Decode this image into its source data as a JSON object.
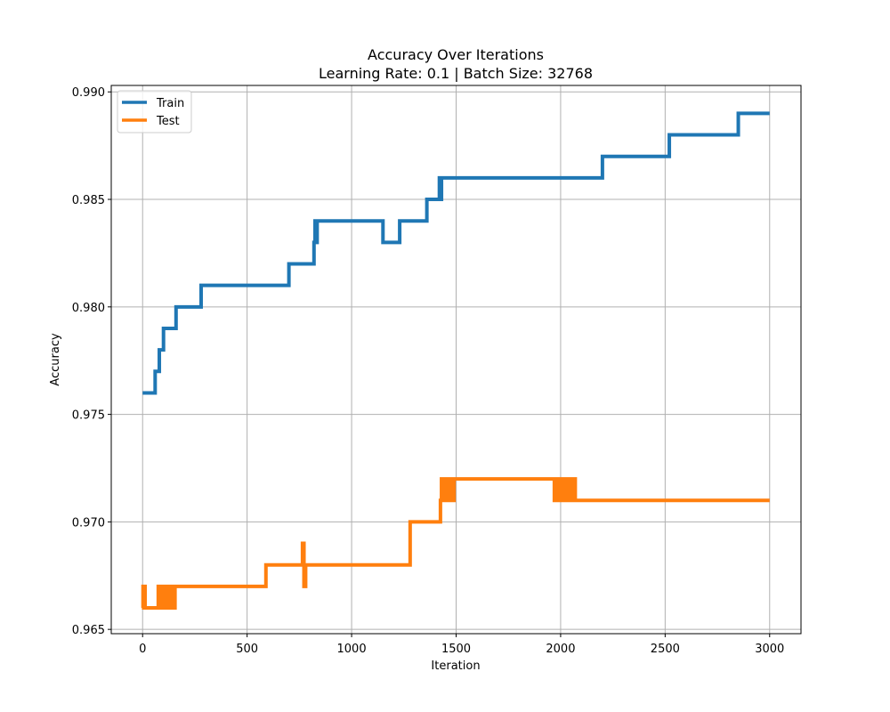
{
  "chart_data": {
    "type": "line",
    "title": "Accuracy Over Iterations",
    "subtitle": "Learning Rate: 0.1 | Batch Size: 32768",
    "xlabel": "Iteration",
    "ylabel": "Accuracy",
    "xlim": [
      -150,
      3150
    ],
    "ylim": [
      0.9648,
      0.9903
    ],
    "xticks": [
      0,
      500,
      1000,
      1500,
      2000,
      2500,
      3000
    ],
    "yticks": [
      0.965,
      0.97,
      0.975,
      0.98,
      0.985,
      0.99
    ],
    "xtick_labels": [
      "0",
      "500",
      "1000",
      "1500",
      "2000",
      "2500",
      "3000"
    ],
    "ytick_labels": [
      "0.965",
      "0.970",
      "0.975",
      "0.980",
      "0.985",
      "0.990"
    ],
    "grid": true,
    "legend": "top-left",
    "series": [
      {
        "name": "Train",
        "color": "#1f77b4",
        "x": [
          0,
          60,
          60,
          65,
          65,
          80,
          80,
          85,
          85,
          100,
          100,
          160,
          160,
          280,
          280,
          700,
          700,
          820,
          820,
          825,
          825,
          830,
          830,
          835,
          835,
          1150,
          1150,
          1230,
          1230,
          1360,
          1360,
          1420,
          1420,
          1425,
          1425,
          1430,
          1430,
          2200,
          2200,
          2520,
          2520,
          2850,
          2850,
          3000
        ],
        "y": [
          0.976,
          0.976,
          0.977,
          0.977,
          0.977,
          0.977,
          0.978,
          0.978,
          0.978,
          0.978,
          0.979,
          0.979,
          0.98,
          0.98,
          0.981,
          0.981,
          0.982,
          0.982,
          0.983,
          0.983,
          0.984,
          0.984,
          0.983,
          0.983,
          0.984,
          0.984,
          0.983,
          0.983,
          0.984,
          0.984,
          0.985,
          0.985,
          0.986,
          0.986,
          0.985,
          0.985,
          0.986,
          0.986,
          0.987,
          0.987,
          0.988,
          0.988,
          0.989,
          0.989
        ]
      },
      {
        "name": "Test",
        "color": "#ff7f0e",
        "x": [
          0,
          2,
          2,
          5,
          5,
          8,
          8,
          12,
          12,
          16,
          16,
          75,
          75,
          85,
          85,
          95,
          95,
          105,
          105,
          115,
          115,
          125,
          125,
          135,
          135,
          145,
          145,
          155,
          155,
          160,
          160,
          590,
          590,
          765,
          765,
          772,
          772,
          780,
          780,
          790,
          790,
          1280,
          1280,
          1290,
          1290,
          1425,
          1425,
          1430,
          1430,
          1435,
          1435,
          1445,
          1445,
          1455,
          1455,
          1465,
          1465,
          1475,
          1475,
          1490,
          1490,
          1500,
          1500,
          1970,
          1970,
          1980,
          1980,
          1990,
          1990,
          2000,
          2000,
          2010,
          2010,
          2020,
          2020,
          2030,
          2030,
          2040,
          2040,
          2050,
          2050,
          2060,
          2060,
          2070,
          2070,
          3000
        ],
        "y": [
          0.966,
          0.966,
          0.967,
          0.967,
          0.966,
          0.966,
          0.967,
          0.967,
          0.966,
          0.966,
          0.966,
          0.966,
          0.967,
          0.967,
          0.966,
          0.966,
          0.967,
          0.967,
          0.966,
          0.966,
          0.967,
          0.967,
          0.966,
          0.966,
          0.967,
          0.967,
          0.966,
          0.966,
          0.967,
          0.967,
          0.967,
          0.967,
          0.968,
          0.968,
          0.969,
          0.969,
          0.967,
          0.967,
          0.968,
          0.968,
          0.968,
          0.968,
          0.97,
          0.97,
          0.97,
          0.97,
          0.971,
          0.971,
          0.972,
          0.972,
          0.971,
          0.971,
          0.972,
          0.972,
          0.971,
          0.971,
          0.972,
          0.972,
          0.971,
          0.971,
          0.972,
          0.972,
          0.972,
          0.972,
          0.971,
          0.971,
          0.972,
          0.972,
          0.971,
          0.971,
          0.972,
          0.972,
          0.971,
          0.971,
          0.972,
          0.972,
          0.971,
          0.971,
          0.972,
          0.972,
          0.971,
          0.971,
          0.972,
          0.972,
          0.971,
          0.971
        ]
      }
    ]
  }
}
